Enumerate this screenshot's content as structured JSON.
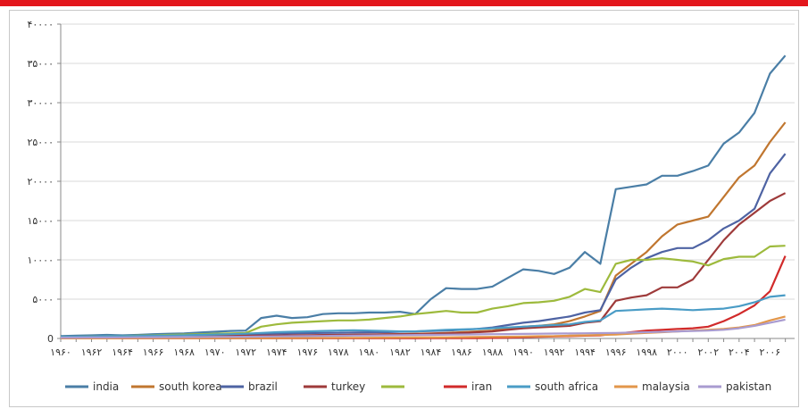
{
  "colors": {
    "topbar": "#e3161c",
    "grid": "#d9d9d9",
    "axis": "#888888"
  },
  "chart_data": {
    "type": "line",
    "title": "",
    "xlabel": "",
    "ylabel": "",
    "ylim": [
      0,
      40000
    ],
    "grid": true,
    "legend_position": "bottom",
    "y_ticks": [
      0,
      5000,
      10000,
      15000,
      20000,
      25000,
      30000,
      35000,
      40000
    ],
    "y_tick_labels": [
      "0",
      "۵۰۰۰",
      "۱۰۰۰۰",
      "۱۵۰۰۰",
      "۲۰۰۰۰",
      "۲۵۰۰۰",
      "۳۰۰۰۰",
      "۳۵۰۰۰",
      "۴۰۰۰۰"
    ],
    "x_ticks": [
      1960,
      1962,
      1964,
      1966,
      1968,
      1970,
      1972,
      1974,
      1976,
      1978,
      1980,
      1982,
      1984,
      1986,
      1988,
      1990,
      1992,
      1994,
      1996,
      1998,
      2000,
      2002,
      2004,
      2006
    ],
    "x_tick_labels": [
      "۱۹۶۰",
      "۱۹۶۲",
      "۱۹۶۴",
      "۱۹۶۶",
      "۱۹۶۸",
      "۱۹۷۰",
      "۱۹۷۲",
      "۱۹۷۴",
      "۱۹۷۶",
      "۱۹۷۸",
      "۱۹۸۰",
      "۱۹۸۲",
      "۱۹۸۴",
      "۱۹۸۶",
      "۱۹۸۸",
      "۱۹۹۰",
      "۱۹۹۲",
      "۱۹۹۴",
      "۱۹۹۶",
      "۱۹۹۸",
      "۲۰۰۰",
      "۲۰۰۲",
      "۲۰۰۴",
      "۲۰۰۶"
    ],
    "x": [
      1960,
      1961,
      1962,
      1963,
      1964,
      1965,
      1966,
      1967,
      1968,
      1969,
      1970,
      1971,
      1972,
      1973,
      1974,
      1975,
      1976,
      1977,
      1978,
      1979,
      1980,
      1981,
      1982,
      1983,
      1984,
      1985,
      1986,
      1987,
      1988,
      1989,
      1990,
      1991,
      1992,
      1993,
      1994,
      1995,
      1996,
      1997,
      1998,
      1999,
      2000,
      2001,
      2002,
      2003,
      2004,
      2005,
      2006,
      2007
    ],
    "series": [
      {
        "name": "india",
        "color": "#4a7ea6",
        "values": [
          300,
          350,
          400,
          450,
          400,
          450,
          550,
          600,
          650,
          750,
          850,
          950,
          1000,
          2600,
          2900,
          2600,
          2700,
          3100,
          3200,
          3200,
          3300,
          3300,
          3400,
          3100,
          5000,
          6400,
          6300,
          6300,
          6600,
          7700,
          8800,
          8600,
          8200,
          9000,
          11000,
          9500,
          19000,
          19300,
          19600,
          20700,
          20700,
          21300,
          22000,
          24800,
          26200,
          28700,
          33700,
          36000
        ]
      },
      {
        "name": "south korea",
        "color": "#c0762f",
        "values": [
          50,
          60,
          80,
          90,
          100,
          110,
          130,
          150,
          180,
          200,
          230,
          260,
          280,
          300,
          320,
          350,
          380,
          400,
          420,
          450,
          480,
          520,
          560,
          600,
          650,
          700,
          800,
          900,
          1000,
          1300,
          1500,
          1600,
          1800,
          2200,
          2800,
          3500,
          8000,
          9500,
          11000,
          13000,
          14500,
          15000,
          15500,
          18000,
          20500,
          22000,
          25000,
          27500
        ]
      },
      {
        "name": "brazil",
        "color": "#4e63a3",
        "values": [
          100,
          120,
          150,
          180,
          200,
          220,
          250,
          280,
          320,
          360,
          400,
          450,
          500,
          550,
          600,
          650,
          680,
          700,
          720,
          750,
          780,
          800,
          850,
          900,
          950,
          1000,
          1100,
          1200,
          1400,
          1700,
          2000,
          2200,
          2500,
          2800,
          3300,
          3600,
          7500,
          9000,
          10200,
          11000,
          11500,
          11500,
          12500,
          14000,
          15000,
          16500,
          21000,
          23500
        ]
      },
      {
        "name": "turkey",
        "color": "#9e3a3a",
        "values": [
          100,
          120,
          140,
          160,
          180,
          200,
          220,
          240,
          260,
          280,
          300,
          320,
          340,
          360,
          380,
          400,
          420,
          440,
          460,
          480,
          500,
          520,
          540,
          560,
          600,
          650,
          700,
          800,
          900,
          1100,
          1300,
          1400,
          1500,
          1600,
          2000,
          2200,
          4800,
          5200,
          5500,
          6500,
          6500,
          7500,
          10000,
          12500,
          14500,
          16000,
          17500,
          18500
        ]
      },
      {
        "name": "",
        "color": "#9dba3c",
        "values": [
          200,
          220,
          250,
          280,
          300,
          350,
          400,
          450,
          500,
          550,
          600,
          650,
          700,
          1500,
          1800,
          2000,
          2100,
          2200,
          2300,
          2300,
          2400,
          2600,
          2800,
          3100,
          3300,
          3500,
          3300,
          3300,
          3800,
          4100,
          4500,
          4600,
          4800,
          5300,
          6300,
          5900,
          9500,
          10000,
          10000,
          10200,
          10000,
          9800,
          9300,
          10100,
          10400,
          10400,
          11700,
          11800
        ]
      },
      {
        "name": "iran",
        "color": "#d12a2a",
        "values": [
          20,
          20,
          20,
          20,
          20,
          20,
          20,
          20,
          20,
          20,
          20,
          20,
          20,
          20,
          20,
          20,
          20,
          20,
          20,
          20,
          20,
          20,
          20,
          20,
          30,
          30,
          40,
          50,
          70,
          100,
          150,
          200,
          250,
          300,
          350,
          400,
          600,
          800,
          1000,
          1100,
          1200,
          1300,
          1500,
          2200,
          3100,
          4200,
          6000,
          10500
        ]
      },
      {
        "name": "south africa",
        "color": "#4a9cc6",
        "values": [
          200,
          220,
          250,
          280,
          300,
          320,
          350,
          380,
          400,
          450,
          500,
          550,
          600,
          700,
          800,
          850,
          900,
          950,
          1000,
          1050,
          1000,
          950,
          900,
          900,
          1000,
          1100,
          1150,
          1200,
          1300,
          1400,
          1500,
          1600,
          1700,
          1800,
          2100,
          2300,
          3500,
          3600,
          3700,
          3800,
          3700,
          3600,
          3700,
          3800,
          4100,
          4600,
          5300,
          5500
        ]
      },
      {
        "name": "malaysia",
        "color": "#e2964a",
        "values": [
          20,
          20,
          25,
          25,
          30,
          30,
          35,
          35,
          40,
          40,
          45,
          45,
          50,
          50,
          60,
          60,
          70,
          70,
          80,
          80,
          90,
          100,
          110,
          120,
          130,
          140,
          160,
          180,
          200,
          220,
          250,
          280,
          300,
          350,
          400,
          450,
          500,
          600,
          700,
          800,
          900,
          1000,
          1100,
          1200,
          1400,
          1700,
          2300,
          2800
        ]
      },
      {
        "name": "pakistan",
        "color": "#a99bd0",
        "values": [
          100,
          110,
          120,
          130,
          140,
          150,
          160,
          170,
          180,
          190,
          200,
          210,
          220,
          240,
          260,
          280,
          300,
          320,
          340,
          360,
          380,
          400,
          420,
          440,
          460,
          480,
          500,
          520,
          540,
          560,
          580,
          600,
          620,
          640,
          660,
          680,
          700,
          750,
          800,
          850,
          900,
          950,
          1000,
          1100,
          1300,
          1600,
          2000,
          2400
        ]
      }
    ]
  }
}
